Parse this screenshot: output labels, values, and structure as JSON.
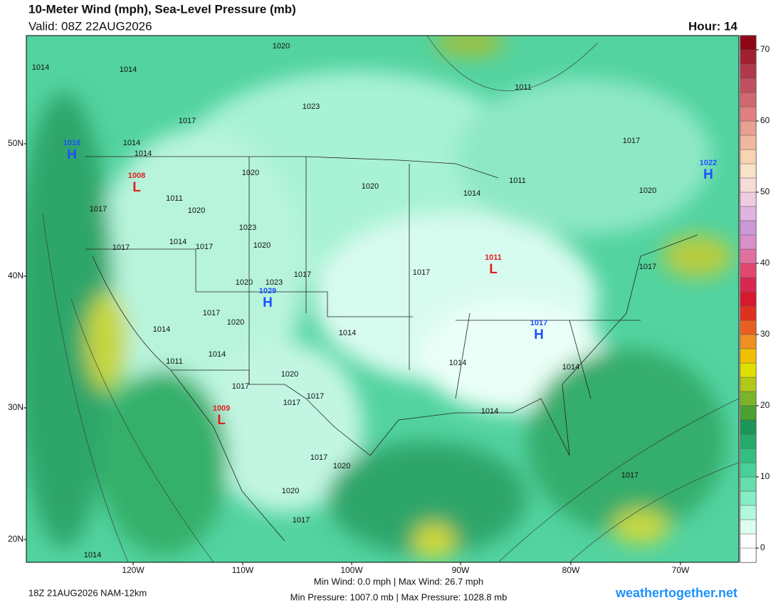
{
  "header": {
    "title": "10-Meter Wind (mph), Sea-Level Pressure (mb)",
    "valid": "Valid: 08Z 22AUG2026",
    "hour": "Hour: 14"
  },
  "map": {
    "lat_labels": [
      "50N",
      "40N",
      "30N",
      "20N"
    ],
    "lon_labels": [
      "120W",
      "110W",
      "100W",
      "90W",
      "80W",
      "70W"
    ],
    "pressure_labels": [
      "1020",
      "1014",
      "1014",
      "1011",
      "1023",
      "1017",
      "1017",
      "1014",
      "1014",
      "1020",
      "1020",
      "1020",
      "1014",
      "1011",
      "1017",
      "1020",
      "1011",
      "1023",
      "1014",
      "1017",
      "1017",
      "1020",
      "1017",
      "1017",
      "1020",
      "1023",
      "1017",
      "1017",
      "1020",
      "1014",
      "1014",
      "1014",
      "1011",
      "1014",
      "1014",
      "1020",
      "1017",
      "1017",
      "1017",
      "1014",
      "1017",
      "1020",
      "1020",
      "1017",
      "1017",
      "1014"
    ],
    "centers": [
      {
        "type": "H",
        "value": "1016"
      },
      {
        "type": "L",
        "value": "1008"
      },
      {
        "type": "L",
        "value": "1011"
      },
      {
        "type": "H",
        "value": "1029"
      },
      {
        "type": "H",
        "value": "1017"
      },
      {
        "type": "H",
        "value": "1022"
      },
      {
        "type": "L",
        "value": "1009"
      }
    ]
  },
  "colorbar": {
    "lim": [
      -2,
      72
    ],
    "ticks": [
      0,
      10,
      20,
      30,
      40,
      50,
      60,
      70
    ],
    "colors": [
      "#ffffff",
      "#ffffff",
      "#dcfff0",
      "#b4f8dc",
      "#88ecc4",
      "#64deac",
      "#48d098",
      "#34bf82",
      "#26ab6c",
      "#1a9656",
      "#4aa030",
      "#7ab428",
      "#b0c818",
      "#e0e000",
      "#f0c000",
      "#f09020",
      "#e86020",
      "#e03020",
      "#d81830",
      "#d82850",
      "#e04870",
      "#e070a0",
      "#d890c8",
      "#cc98d8",
      "#e0b4e0",
      "#f0cce0",
      "#f8dcd8",
      "#f8e4c8",
      "#f8d4b0",
      "#f0b8a0",
      "#e8a090",
      "#e08080",
      "#d06870",
      "#c05060",
      "#b03848",
      "#a02030",
      "#900818"
    ]
  },
  "footer": {
    "run": "18Z 21AUG2026 NAM-12km",
    "wind": "Min Wind:   0.0 mph | Max Wind: 26.7 mph",
    "pressure": "Min Pressure: 1007.0 mb | Max Pressure: 1028.8 mb",
    "site": "weathertogether.net"
  }
}
